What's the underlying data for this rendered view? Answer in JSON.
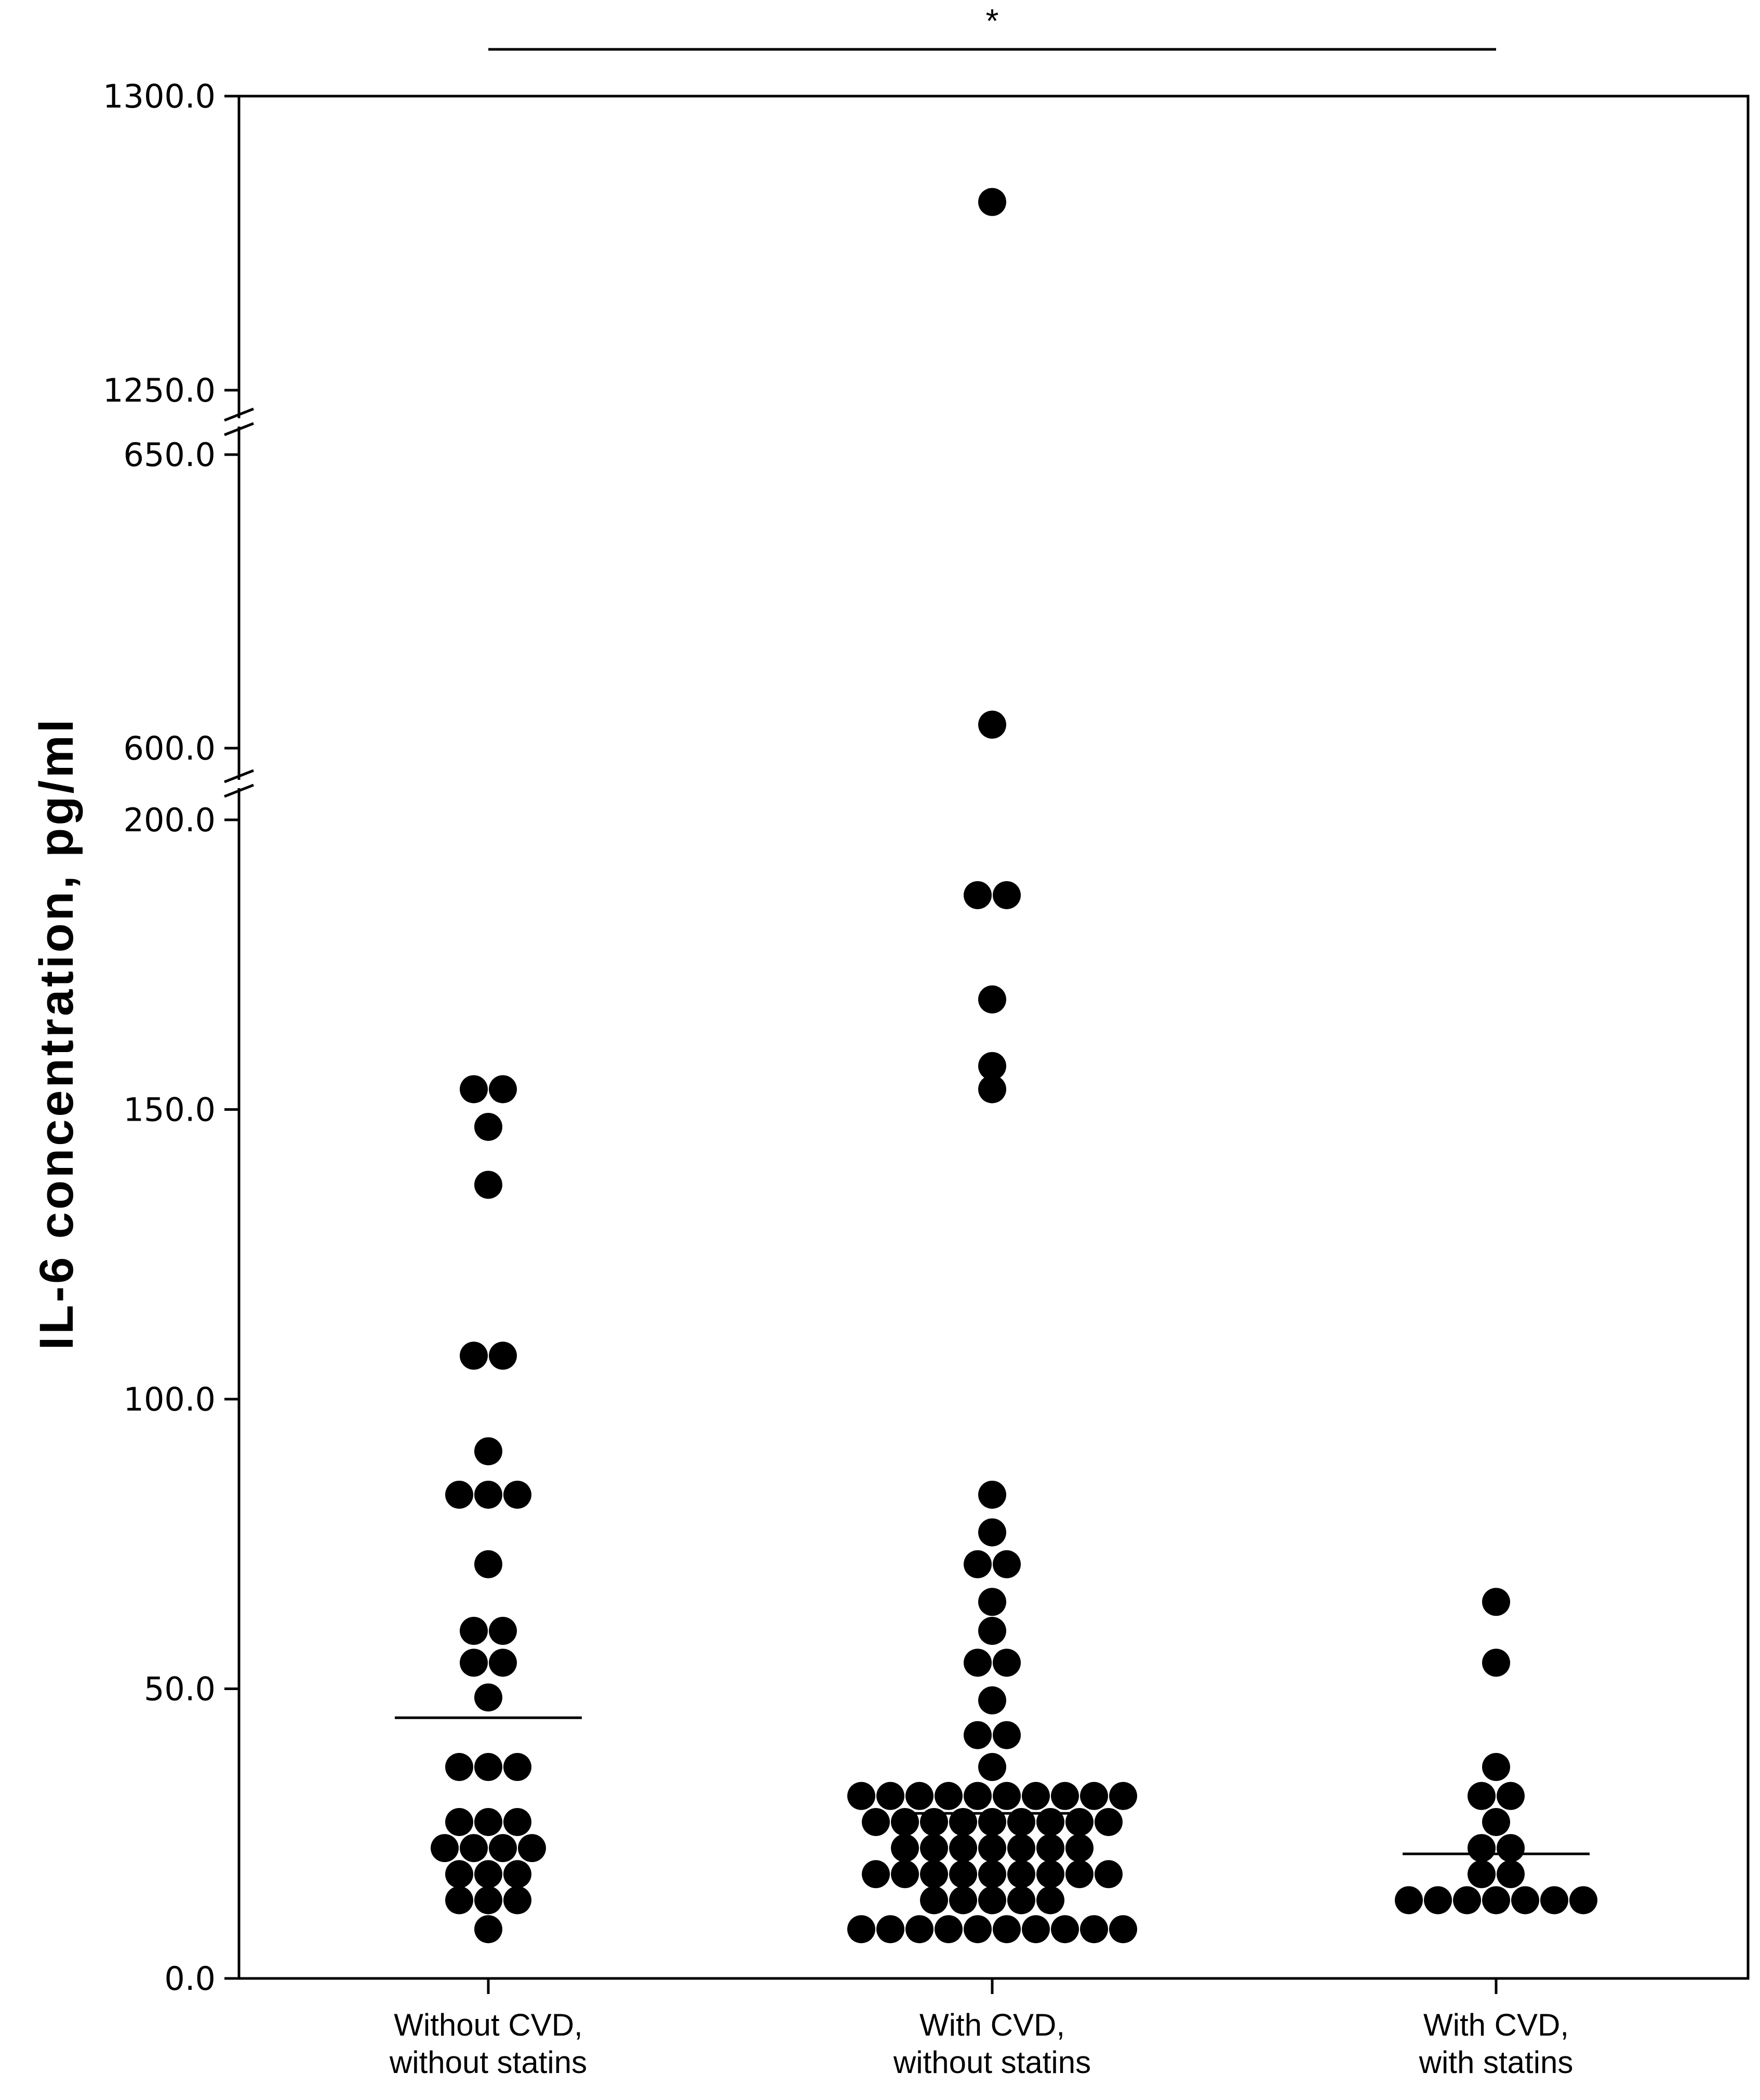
{
  "chart_data": {
    "type": "scatter",
    "subtype": "dot plot (beeswarm) with median lines and broken y-axis",
    "title": "",
    "xlabel": "",
    "ylabel": "IL-6 concentration, pg/ml",
    "categories": [
      [
        "Without CVD,",
        "without statins"
      ],
      [
        "With CVD,",
        "without statins"
      ],
      [
        "With CVD,",
        "with statins"
      ]
    ],
    "y_ticks": [
      "0.0",
      "50.0",
      "100.0",
      "150.0",
      "200.0",
      "600.0",
      "650.0",
      "1250.0",
      "1300.0"
    ],
    "y_axis_segments": [
      {
        "range": [
          0,
          200
        ]
      },
      {
        "range": [
          600,
          650
        ]
      },
      {
        "range": [
          1250,
          1300
        ]
      }
    ],
    "axis_breaks": [
      [
        200,
        600
      ],
      [
        650,
        1250
      ]
    ],
    "grid": false,
    "medians": [
      45,
      28.5,
      21.5
    ],
    "significance": {
      "label": "*",
      "from_category": 0,
      "to_category": 2
    },
    "series": [
      {
        "category": 0,
        "values": [
          153.5,
          153.5,
          147,
          137,
          107.5,
          107.5,
          91,
          83.5,
          83.5,
          83.5,
          71.5,
          60,
          60,
          54.5,
          54.5,
          48.5,
          36.5,
          36.5,
          36.5,
          27,
          27,
          27,
          22.5,
          22.5,
          22.5,
          22.5,
          18,
          18,
          18,
          13.5,
          13.5,
          13.5,
          8.5
        ]
      },
      {
        "category": 1,
        "values": [
          1282,
          604,
          187,
          187,
          169,
          157.5,
          153.5,
          83.5,
          77,
          71.5,
          71.5,
          65,
          60,
          54.5,
          54.5,
          48,
          42,
          42,
          36.5,
          31.5,
          31.5,
          31.5,
          31.5,
          31.5,
          31.5,
          31.5,
          31.5,
          31.5,
          31.5,
          27,
          27,
          27,
          27,
          27,
          27,
          27,
          27,
          27,
          22.5,
          22.5,
          22.5,
          22.5,
          22.5,
          22.5,
          22.5,
          18,
          18,
          18,
          18,
          18,
          18,
          18,
          18,
          18,
          13.5,
          13.5,
          13.5,
          13.5,
          13.5,
          8.5,
          8.5,
          8.5,
          8.5,
          8.5,
          8.5,
          8.5,
          8.5,
          8.5,
          8.5
        ]
      },
      {
        "category": 2,
        "values": [
          65,
          54.5,
          36.5,
          31.5,
          31.5,
          27,
          22.5,
          22.5,
          18,
          18,
          13.5,
          13.5,
          13.5,
          13.5,
          13.5,
          13.5,
          13.5
        ]
      }
    ]
  }
}
